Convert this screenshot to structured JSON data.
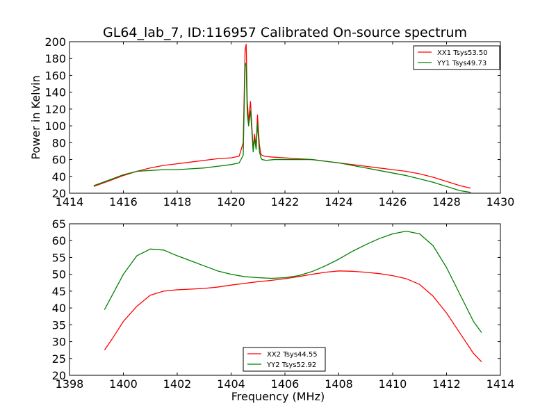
{
  "title": "GL64_lab_7, ID:116957 Calibrated On-source spectrum",
  "colors": {
    "red": "#ff0000",
    "green": "#008000"
  },
  "chart_data": [
    {
      "type": "line",
      "title": "GL64_lab_7, ID:116957 Calibrated On-source spectrum",
      "xlabel": "",
      "ylabel": "Power in Kelvin",
      "xlim": [
        1414,
        1430
      ],
      "ylim": [
        20,
        200
      ],
      "xticks": [
        1414,
        1416,
        1418,
        1420,
        1422,
        1424,
        1426,
        1428,
        1430
      ],
      "yticks": [
        20,
        40,
        60,
        80,
        100,
        120,
        140,
        160,
        180,
        200
      ],
      "legend_position": "top-right",
      "grid": false,
      "series": [
        {
          "name": "XX1 Tsys53.50",
          "color": "#ff0000",
          "x": [
            1414.9,
            1415.5,
            1416.0,
            1416.5,
            1417.0,
            1417.5,
            1418.0,
            1418.5,
            1419.0,
            1419.5,
            1420.0,
            1420.3,
            1420.45,
            1420.52,
            1420.56,
            1420.6,
            1420.65,
            1420.72,
            1420.78,
            1420.82,
            1420.87,
            1420.93,
            1420.98,
            1421.05,
            1421.1,
            1421.15,
            1421.25,
            1421.5,
            1422.0,
            1422.5,
            1423.0,
            1423.5,
            1424.0,
            1424.5,
            1425.0,
            1425.5,
            1426.0,
            1426.5,
            1427.0,
            1427.5,
            1428.0,
            1428.5,
            1428.9
          ],
          "y": [
            28,
            35,
            41,
            46,
            50,
            53,
            55,
            57,
            59,
            61,
            62,
            64,
            80,
            190,
            197,
            130,
            105,
            129,
            95,
            72,
            90,
            75,
            113,
            78,
            67,
            65,
            64,
            63,
            62,
            61,
            60,
            58,
            56,
            54,
            52,
            50,
            48,
            46,
            43,
            39,
            34,
            29,
            26
          ]
        },
        {
          "name": "YY1 Tsys49.73",
          "color": "#008000",
          "x": [
            1414.9,
            1415.5,
            1416.0,
            1416.5,
            1417.0,
            1417.5,
            1418.0,
            1418.5,
            1419.0,
            1419.5,
            1420.0,
            1420.3,
            1420.45,
            1420.52,
            1420.56,
            1420.6,
            1420.65,
            1420.72,
            1420.78,
            1420.82,
            1420.87,
            1420.93,
            1420.98,
            1421.05,
            1421.1,
            1421.15,
            1421.3,
            1421.6,
            1422.0,
            1422.5,
            1423.0,
            1423.5,
            1424.0,
            1424.5,
            1425.0,
            1425.5,
            1426.0,
            1426.5,
            1427.0,
            1427.5,
            1428.0,
            1428.5,
            1428.9
          ],
          "y": [
            29,
            36,
            42,
            46,
            47,
            48,
            48,
            49,
            50,
            52,
            54,
            56,
            65,
            175,
            172,
            115,
            100,
            118,
            90,
            69,
            85,
            72,
            103,
            70,
            63,
            60,
            59,
            60,
            60,
            60,
            60,
            58,
            56,
            53,
            50,
            47,
            44,
            41,
            37,
            33,
            28,
            23,
            21
          ]
        }
      ]
    },
    {
      "type": "line",
      "title": "",
      "xlabel": "Frequency (MHz)",
      "ylabel": "",
      "xlim": [
        1398,
        1414
      ],
      "ylim": [
        20,
        65
      ],
      "xticks": [
        1398,
        1400,
        1402,
        1404,
        1406,
        1408,
        1410,
        1412,
        1414
      ],
      "yticks": [
        20,
        25,
        30,
        35,
        40,
        45,
        50,
        55,
        60,
        65
      ],
      "legend_position": "bottom-center",
      "grid": false,
      "series": [
        {
          "name": "XX2 Tsys44.55",
          "color": "#ff0000",
          "x": [
            1399.3,
            1399.6,
            1400.0,
            1400.5,
            1401.0,
            1401.5,
            1402.0,
            1402.5,
            1403.0,
            1403.5,
            1404.0,
            1404.5,
            1405.0,
            1405.5,
            1406.0,
            1406.5,
            1407.0,
            1407.5,
            1408.0,
            1408.5,
            1409.0,
            1409.5,
            1410.0,
            1410.5,
            1411.0,
            1411.5,
            1412.0,
            1412.5,
            1413.0,
            1413.3
          ],
          "y": [
            27.5,
            31,
            36,
            40.5,
            43.8,
            45,
            45.4,
            45.6,
            45.8,
            46.2,
            46.8,
            47.3,
            47.8,
            48.2,
            48.7,
            49.3,
            50,
            50.6,
            51,
            50.9,
            50.6,
            50.2,
            49.6,
            48.7,
            47,
            43.5,
            38.5,
            32.5,
            26.5,
            24
          ]
        },
        {
          "name": "YY2 Tsys52.92",
          "color": "#008000",
          "x": [
            1399.3,
            1399.6,
            1400.0,
            1400.5,
            1401.0,
            1401.5,
            1402.0,
            1402.5,
            1403.0,
            1403.5,
            1404.0,
            1404.5,
            1405.0,
            1405.5,
            1406.0,
            1406.5,
            1407.0,
            1407.5,
            1408.0,
            1408.5,
            1409.0,
            1409.5,
            1410.0,
            1410.5,
            1411.0,
            1411.5,
            1412.0,
            1412.5,
            1413.0,
            1413.3
          ],
          "y": [
            39.5,
            44,
            50,
            55.5,
            57.5,
            57.2,
            55.5,
            54,
            52.5,
            51,
            50,
            49.3,
            49,
            48.8,
            49,
            49.6,
            50.8,
            52.5,
            54.5,
            56.8,
            58.8,
            60.6,
            62,
            62.8,
            62,
            58.5,
            52,
            44,
            36,
            32.7
          ]
        }
      ]
    }
  ]
}
